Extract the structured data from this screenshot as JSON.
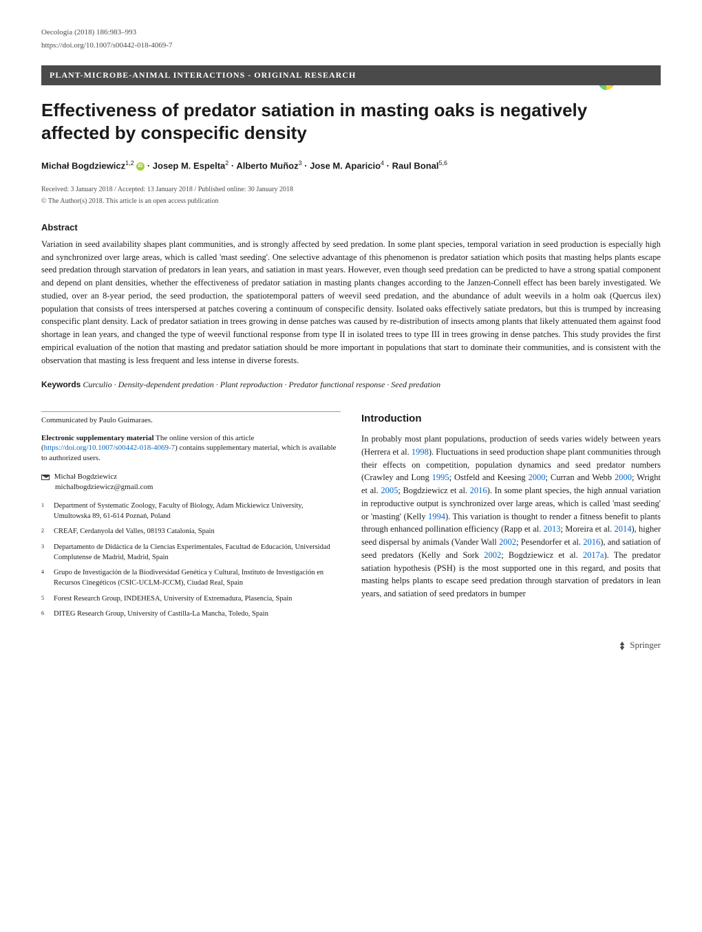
{
  "journal": {
    "citation": "Oecologia (2018) 186:983–993",
    "doi": "https://doi.org/10.1007/s00442-018-4069-7"
  },
  "category": "PLANT-MICROBE-ANIMAL INTERACTIONS - ORIGINAL RESEARCH",
  "crossmark_label": "CrossMark",
  "title": "Effectiveness of predator satiation in masting oaks is negatively affected by conspecific density",
  "authors_html": "Michał Bogdziewicz<sup>1,2</sup> <span class='orcid-icon' data-name='orcid-icon' data-interactable='false'></span> · Josep M. Espelta<sup>2</sup> · Alberto Muñoz<sup>3</sup> · Jose M. Aparicio<sup>4</sup> · Raul Bonal<sup>5,6</sup>",
  "dates": "Received: 3 January 2018 / Accepted: 13 January 2018 / Published online: 30 January 2018",
  "copyright": "© The Author(s) 2018. This article is an open access publication",
  "abstract": {
    "heading": "Abstract",
    "text": "Variation in seed availability shapes plant communities, and is strongly affected by seed predation. In some plant species, temporal variation in seed production is especially high and synchronized over large areas, which is called 'mast seeding'. One selective advantage of this phenomenon is predator satiation which posits that masting helps plants escape seed predation through starvation of predators in lean years, and satiation in mast years. However, even though seed predation can be predicted to have a strong spatial component and depend on plant densities, whether the effectiveness of predator satiation in masting plants changes according to the Janzen-Connell effect has been barely investigated. We studied, over an 8-year period, the seed production, the spatiotemporal patters of weevil seed predation, and the abundance of adult weevils in a holm oak (Quercus ilex) population that consists of trees interspersed at patches covering a continuum of conspecific density. Isolated oaks effectively satiate predators, but this is trumped by increasing conspecific plant density. Lack of predator satiation in trees growing in dense patches was caused by re-distribution of insects among plants that likely attenuated them against food shortage in lean years, and changed the type of weevil functional response from type II in isolated trees to type III in trees growing in dense patches. This study provides the first empirical evaluation of the notion that masting and predator satiation should be more important in populations that start to dominate their communities, and is consistent with the observation that masting is less frequent and less intense in diverse forests."
  },
  "keywords": {
    "label": "Keywords",
    "text": "Curculio · Density-dependent predation · Plant reproduction · Predator functional response · Seed predation"
  },
  "communicated": "Communicated by Paulo Guimaraes.",
  "supp_material": {
    "label": "Electronic supplementary material",
    "text_before": " The online version of this article (",
    "link": "https://doi.org/10.1007/s00442-018-4069-7",
    "text_after": ") contains supplementary material, which is available to authorized users."
  },
  "correspondence": {
    "name": "Michał Bogdziewicz",
    "email": "michalbogdziewicz@gmail.com"
  },
  "affiliations": [
    {
      "num": "1",
      "text": "Department of Systematic Zoology, Faculty of Biology, Adam Mickiewicz University, Umultowska 89, 61-614 Poznań, Poland"
    },
    {
      "num": "2",
      "text": "CREAF, Cerdanyola del Valles, 08193 Catalonia, Spain"
    },
    {
      "num": "3",
      "text": "Departamento de Didáctica de la Ciencias Experimentales, Facultad de Educación, Universidad Complutense de Madrid, Madrid, Spain"
    },
    {
      "num": "4",
      "text": "Grupo de Investigación de la Biodiversidad Genética y Cultural, Instituto de Investigación en Recursos Cinegéticos (CSIC-UCLM-JCCM), Ciudad Real, Spain"
    },
    {
      "num": "5",
      "text": "Forest Research Group, INDEHESA, University of Extremadura, Plasencia, Spain"
    },
    {
      "num": "6",
      "text": "DITEG Research Group, University of Castilla-La Mancha, Toledo, Spain"
    }
  ],
  "introduction": {
    "heading": "Introduction",
    "text_html": "In probably most plant populations, production of seeds varies widely between years (Herrera et al. <span class='ref-year'>1998</span>). Fluctuations in seed production shape plant communities through their effects on competition, population dynamics and seed predator numbers (Crawley and Long <span class='ref-year'>1995</span>; Ostfeld and Keesing <span class='ref-year'>2000</span>; Curran and Webb <span class='ref-year'>2000</span>; Wright et al. <span class='ref-year'>2005</span>; Bogdziewicz et al. <span class='ref-year'>2016</span>). In some plant species, the high annual variation in reproductive output is synchronized over large areas, which is called 'mast seeding' or 'masting' (Kelly <span class='ref-year'>1994</span>). This variation is thought to render a fitness benefit to plants through enhanced pollination efficiency (Rapp et al. <span class='ref-year'>2013</span>; Moreira et al. <span class='ref-year'>2014</span>), higher seed dispersal by animals (Vander Wall <span class='ref-year'>2002</span>; Pesendorfer et al. <span class='ref-year'>2016</span>), and satiation of seed predators (Kelly and Sork <span class='ref-year'>2002</span>; Bogdziewicz et al. <span class='ref-year'>2017a</span>). The predator satiation hypothesis (PSH) is the most supported one in this regard, and posits that masting helps plants to escape seed predation through starvation of predators in lean years, and satiation of seed predators in bumper"
  },
  "publisher": "Springer",
  "colors": {
    "text": "#1a1a1a",
    "muted": "#4a4a4a",
    "banner_bg": "#4a4a4a",
    "link": "#0066cc",
    "orcid": "#a6ce39",
    "background": "#ffffff"
  },
  "fonts": {
    "body": "Georgia, Times New Roman, serif",
    "headings": "Arial, sans-serif",
    "title_size": 26,
    "body_size": 12.5,
    "small_size": 11
  }
}
